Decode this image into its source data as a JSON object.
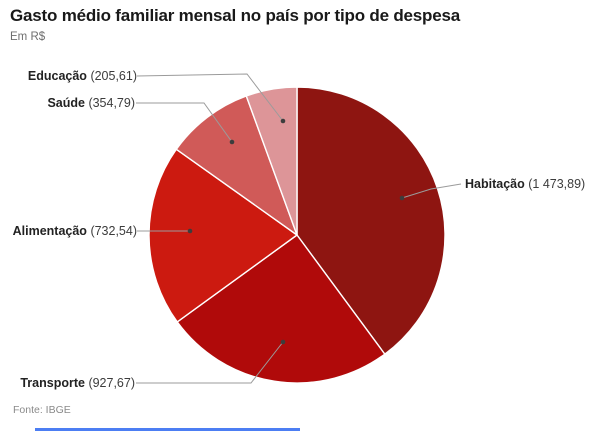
{
  "header": {
    "title": "Gasto médio familiar mensal no país por tipo de despesa",
    "subtitle": "Em R$"
  },
  "footer": {
    "source": "Fonte: IBGE",
    "accent_color": "#4c7ef3"
  },
  "callouts": [
    {
      "name": "Educação",
      "value_text": "(205,61)"
    },
    {
      "name": "Saúde",
      "value_text": "(354,79)"
    },
    {
      "name": "Alimentação",
      "value_text": "(732,54)"
    },
    {
      "name": "Habitação",
      "value_text": "(1 473,89)"
    },
    {
      "name": "Transporte",
      "value_text": "(927,67)"
    }
  ],
  "chart_data": {
    "type": "pie",
    "title": "Gasto médio familiar mensal no país por tipo de despesa",
    "unit_label": "Em R$",
    "source": "Fonte: IBGE",
    "categories": [
      "Habitação",
      "Transporte",
      "Alimentação",
      "Saúde",
      "Educação"
    ],
    "values": [
      1473.89,
      927.67,
      732.54,
      354.79,
      205.61
    ],
    "value_labels": [
      "1 473,89",
      "927,67",
      "732,54",
      "354,79",
      "205,61"
    ],
    "colors": [
      "#8e1511",
      "#b00a0a",
      "#cc1a10",
      "#d05a58",
      "#dd9598"
    ],
    "total": 3694.5,
    "start_angle_deg": 0,
    "direction": "clockwise",
    "legend": "none",
    "labels_style": "external-callouts-with-leader-lines"
  }
}
